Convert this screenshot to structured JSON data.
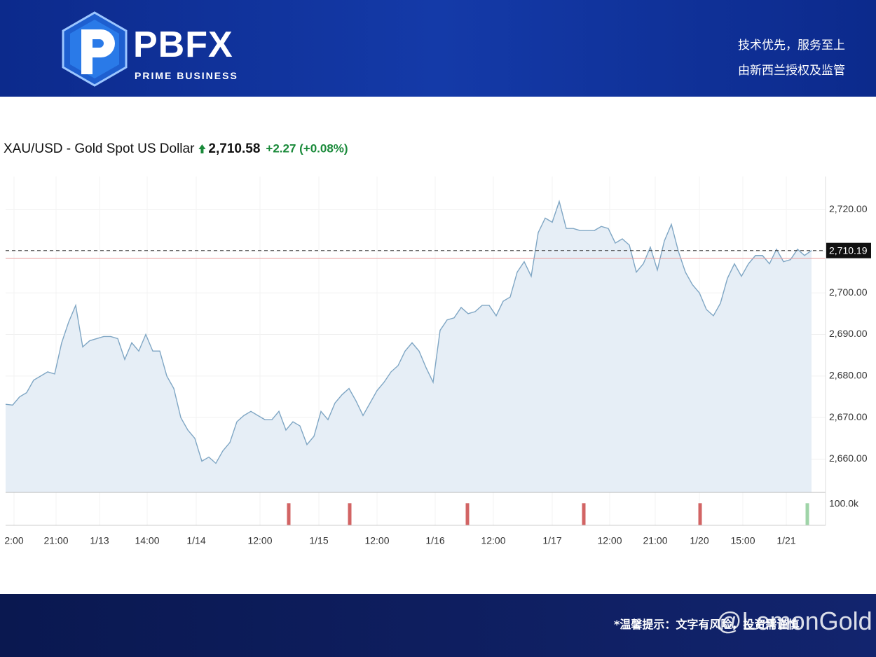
{
  "header": {
    "brand": "PBFX",
    "tagline": "PRIME BUSINESS",
    "slogan_lines": [
      "技术优先，服务至上",
      "由新西兰授权及监管"
    ]
  },
  "footer": {
    "disclaimer": "*温馨提示：文字有风险，投资需谨慎",
    "watermark": "@LemonGold"
  },
  "chart_data": [
    {
      "type": "line",
      "title": "XAU/USD - Gold Spot US Dollar",
      "price": "2,710.58",
      "change": "+2.27 (+0.08%)",
      "color": "#7fa6c4",
      "fill": "#e6eef6",
      "grid": true,
      "x": [
        0,
        1,
        2,
        3,
        4,
        5,
        6,
        7,
        8,
        9,
        10,
        11,
        12,
        13,
        14,
        15,
        16,
        17,
        18,
        19,
        20,
        21,
        22,
        23,
        24,
        25,
        26,
        27,
        28,
        29,
        30,
        31,
        32,
        33,
        34,
        35,
        36,
        37,
        38,
        39,
        40,
        41,
        42,
        43,
        44,
        45,
        46,
        47,
        48,
        49,
        50,
        51,
        52,
        53,
        54,
        55,
        56,
        57,
        58,
        59,
        60,
        61,
        62,
        63,
        64,
        65,
        66,
        67,
        68,
        69,
        70,
        71,
        72,
        73,
        74,
        75,
        76,
        77,
        78,
        79,
        80,
        81,
        82,
        83,
        84,
        85,
        86,
        87,
        88,
        89,
        90,
        91,
        92,
        93,
        94,
        95,
        96,
        97,
        98,
        99,
        100,
        101,
        102,
        103,
        104,
        105,
        106,
        107,
        108,
        109,
        110,
        111,
        112,
        113,
        114,
        115
      ],
      "values": [
        2673.2,
        2673,
        2675,
        2676,
        2679,
        2680,
        2681,
        2680.5,
        2688,
        2693,
        2697,
        2687,
        2688.5,
        2689,
        2689.5,
        2689.5,
        2689,
        2684,
        2688,
        2686,
        2690,
        2686,
        2686,
        2680,
        2677,
        2670,
        2667,
        2665,
        2659.5,
        2660.5,
        2659,
        2662,
        2664,
        2669,
        2670.5,
        2671.5,
        2670.5,
        2669.5,
        2669.5,
        2671.5,
        2667,
        2669,
        2668,
        2663.5,
        2665.5,
        2671.5,
        2669.5,
        2673.5,
        2675.5,
        2677,
        2674,
        2670.5,
        2673.5,
        2676.5,
        2678.5,
        2681,
        2682.5,
        2686,
        2688,
        2686,
        2682,
        2678.5,
        2691,
        2693.5,
        2694,
        2696.5,
        2695,
        2695.5,
        2697,
        2697,
        2694.5,
        2698,
        2699,
        2705,
        2707.5,
        2704,
        2714.5,
        2718,
        2717,
        2722,
        2715.5,
        2715.5,
        2715,
        2715,
        2715,
        2716,
        2715.5,
        2712,
        2713,
        2711.5,
        2705,
        2707,
        2711,
        2705.5,
        2712.5,
        2716.5,
        2710,
        2705,
        2702,
        2700,
        2696,
        2694.5,
        2697.5,
        2703.5,
        2707,
        2704,
        2707,
        2709,
        2709,
        2707,
        2710.5,
        2707.5,
        2708,
        2710.5,
        2709,
        2710.2
      ],
      "xlim": [
        0,
        117
      ],
      "ylim": [
        2652,
        2728
      ],
      "xticks": [
        {
          "value": 1.2,
          "label": "2:00"
        },
        {
          "value": 7.2,
          "label": "21:00"
        },
        {
          "value": 13.4,
          "label": "1/13"
        },
        {
          "value": 20.2,
          "label": "14:00"
        },
        {
          "value": 27.2,
          "label": "1/14"
        },
        {
          "value": 36.3,
          "label": "12:00"
        },
        {
          "value": 44.7,
          "label": "1/15"
        },
        {
          "value": 53,
          "label": "12:00"
        },
        {
          "value": 61.3,
          "label": "1/16"
        },
        {
          "value": 69.6,
          "label": "12:00"
        },
        {
          "value": 78,
          "label": "1/17"
        },
        {
          "value": 86.2,
          "label": "12:00"
        },
        {
          "value": 92.7,
          "label": "21:00"
        },
        {
          "value": 99,
          "label": "1/20"
        },
        {
          "value": 105.2,
          "label": "15:00"
        },
        {
          "value": 111.4,
          "label": "1/21"
        }
      ],
      "yticks": [
        {
          "value": 2660,
          "label": "2,660.00"
        },
        {
          "value": 2670,
          "label": "2,670.00"
        },
        {
          "value": 2680,
          "label": "2,680.00"
        },
        {
          "value": 2690,
          "label": "2,690.00"
        },
        {
          "value": 2700,
          "label": "2,700.00"
        },
        {
          "value": 2710,
          "label": "2,710.00"
        },
        {
          "value": 2720,
          "label": "2,720.00"
        }
      ],
      "last_price": {
        "value": 2710.19,
        "label": "2,710.19"
      },
      "reference_line": {
        "value": 2708.31,
        "color": "#e99a9a"
      }
    },
    {
      "type": "bar",
      "x": [
        40.4,
        49.1,
        65.9,
        82.5,
        99.1,
        114.4
      ],
      "values": [
        105000,
        105000,
        105000,
        105000,
        105000,
        105000
      ],
      "colors": [
        "#d26464",
        "#d26464",
        "#d26464",
        "#d26464",
        "#d26464",
        "#9fd4a8"
      ],
      "xlim": [
        0,
        117
      ],
      "ylim": [
        0,
        156000
      ],
      "yticks": [
        {
          "value": 100000,
          "label": "100.0k"
        }
      ]
    }
  ]
}
